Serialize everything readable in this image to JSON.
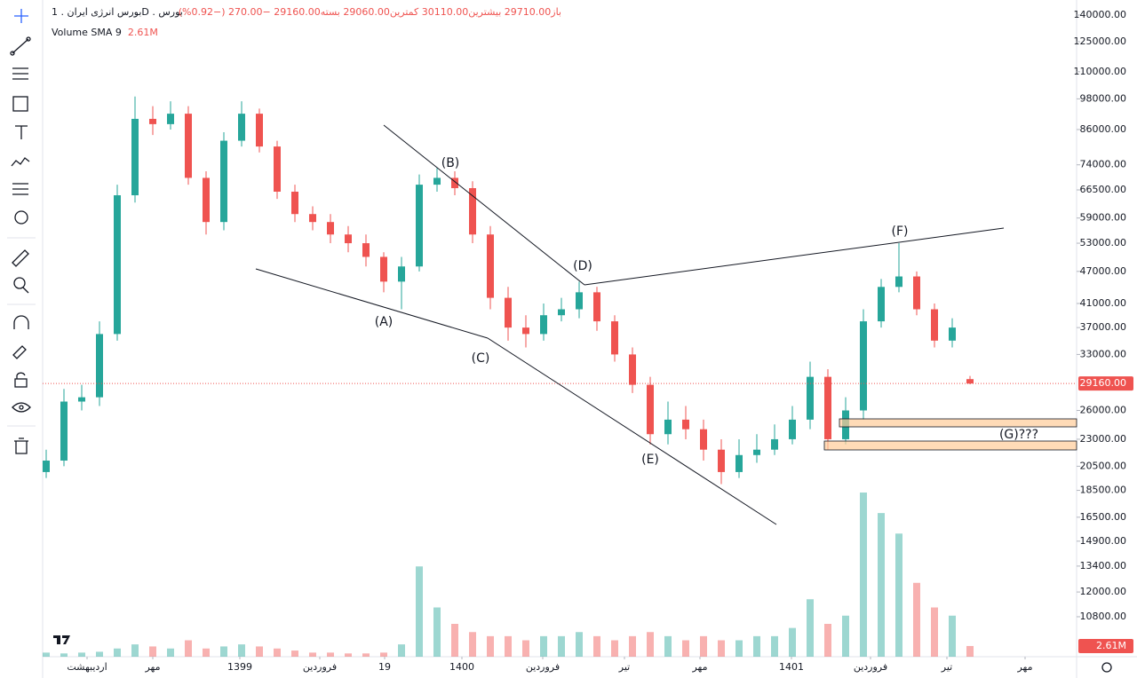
{
  "header": {
    "symbol": "بورس انرژی ایران . 1D . بورس",
    "quote": "باز29710.00 بیشترین30110.00 کمترین29060.00 بسته29160.00 −270.00 (−0.92%)",
    "volume_title": "Volume SMA 9",
    "volume_value": "2.61M"
  },
  "chart_data": {
    "type": "candlestick",
    "log_scale": true,
    "grid": false,
    "up_color": "#26a69a",
    "down_color": "#ef5350",
    "x": [
      0,
      1,
      2,
      3,
      4,
      5,
      6,
      7,
      8,
      9,
      10,
      11,
      12,
      13,
      14,
      15,
      16,
      17,
      18,
      19,
      20,
      21,
      22,
      23,
      24,
      25,
      26,
      27,
      28,
      29,
      30,
      31,
      32,
      33,
      34,
      35,
      36,
      37,
      38,
      39,
      40,
      41,
      42,
      43,
      44,
      45,
      46,
      47,
      48,
      49,
      50,
      51,
      52
    ],
    "open": [
      20000,
      21000,
      27000,
      27500,
      36000,
      65000,
      90000,
      88000,
      92000,
      70000,
      58000,
      82000,
      92000,
      80000,
      66000,
      60000,
      58000,
      55000,
      53000,
      50000,
      45000,
      48000,
      68000,
      70000,
      67000,
      55000,
      42000,
      37000,
      36000,
      39000,
      40000,
      43000,
      38000,
      33000,
      29000,
      23500,
      25000,
      24000,
      22000,
      20000,
      21500,
      22000,
      23000,
      25000,
      30000,
      23000,
      26000,
      38000,
      44000,
      46000,
      40000,
      35000,
      29710
    ],
    "high": [
      22000,
      28500,
      29000,
      38000,
      68000,
      99000,
      95000,
      97000,
      95000,
      72000,
      85000,
      97000,
      94000,
      82000,
      68000,
      62000,
      60000,
      57000,
      55000,
      51000,
      50000,
      71000,
      73000,
      72000,
      69000,
      57000,
      44000,
      39000,
      41000,
      42000,
      45000,
      44000,
      39000,
      34000,
      30000,
      27000,
      26500,
      25000,
      23000,
      23000,
      23500,
      24500,
      26500,
      32000,
      31000,
      27500,
      40000,
      45500,
      53000,
      47000,
      41000,
      38500,
      30110
    ],
    "low": [
      19500,
      20500,
      26000,
      26500,
      35000,
      63000,
      84000,
      86000,
      68000,
      55000,
      56000,
      80000,
      78000,
      64000,
      58000,
      56000,
      53000,
      51000,
      48000,
      43000,
      40000,
      47000,
      66000,
      65000,
      53000,
      40000,
      35000,
      34000,
      35000,
      38000,
      38500,
      36500,
      32000,
      28000,
      22500,
      22500,
      23000,
      21000,
      19000,
      19500,
      20800,
      21500,
      22500,
      24000,
      22000,
      22500,
      25000,
      37000,
      43000,
      39000,
      34000,
      34000,
      29060
    ],
    "close": [
      21000,
      27000,
      27500,
      36000,
      65000,
      90000,
      88000,
      92000,
      70000,
      58000,
      82000,
      92000,
      80000,
      66000,
      60000,
      58000,
      55000,
      53000,
      50000,
      45000,
      48000,
      68000,
      70000,
      67000,
      55000,
      42000,
      37000,
      36000,
      39000,
      40000,
      43000,
      38000,
      33000,
      29000,
      23500,
      25000,
      24000,
      22000,
      20000,
      21500,
      22000,
      23000,
      25000,
      30000,
      23000,
      26000,
      38000,
      44000,
      46000,
      40000,
      35000,
      37000,
      29160
    ],
    "volume": [
      1,
      0.8,
      1,
      1.2,
      2,
      3,
      2.5,
      2,
      4,
      2,
      2.5,
      3,
      2.5,
      2,
      1.5,
      1,
      1,
      0.8,
      0.8,
      1,
      3,
      22,
      12,
      8,
      6,
      5,
      5,
      4,
      5,
      5,
      6,
      5,
      4,
      5,
      6,
      5,
      4,
      5,
      4,
      4,
      5,
      5,
      7,
      14,
      8,
      10,
      40,
      35,
      30,
      18,
      12,
      10,
      2.61
    ],
    "volume_ylim": [
      0,
      160
    ],
    "xlim": [
      -0.2,
      58
    ],
    "xticks": [
      {
        "value": 2.3,
        "label": "اردیبهشت"
      },
      {
        "value": 6,
        "label": "مهر"
      },
      {
        "value": 10.9,
        "label": "1399"
      },
      {
        "value": 15.4,
        "label": "فروردین"
      },
      {
        "value": 19.05,
        "label": "19"
      },
      {
        "value": 23.4,
        "label": "1400"
      },
      {
        "value": 27.95,
        "label": "فروردین"
      },
      {
        "value": 32.55,
        "label": "تیر"
      },
      {
        "value": 36.8,
        "label": "مهر"
      },
      {
        "value": 41.95,
        "label": "1401"
      },
      {
        "value": 46.4,
        "label": "فروردین"
      },
      {
        "value": 50.7,
        "label": "تیر"
      },
      {
        "value": 55.1,
        "label": "مهر"
      }
    ],
    "ylim": [
      9110,
      149300
    ],
    "yticks": [
      {
        "value": 140000,
        "label": "140000.00"
      },
      {
        "value": 125000,
        "label": "125000.00"
      },
      {
        "value": 110000,
        "label": "110000.00"
      },
      {
        "value": 98000,
        "label": "98000.00"
      },
      {
        "value": 86000,
        "label": "86000.00"
      },
      {
        "value": 74000,
        "label": "74000.00"
      },
      {
        "value": 66500,
        "label": "66500.00"
      },
      {
        "value": 59000,
        "label": "59000.00"
      },
      {
        "value": 53000,
        "label": "53000.00"
      },
      {
        "value": 47000,
        "label": "47000.00"
      },
      {
        "value": 41000,
        "label": "41000.00"
      },
      {
        "value": 37000,
        "label": "37000.00"
      },
      {
        "value": 33000,
        "label": "33000.00"
      },
      {
        "value": 26000,
        "label": "26000.00"
      },
      {
        "value": 23000,
        "label": "23000.00"
      },
      {
        "value": 20500,
        "label": "20500.00"
      },
      {
        "value": 18500,
        "label": "18500.00"
      },
      {
        "value": 16500,
        "label": "16500.00"
      },
      {
        "value": 14900,
        "label": "14900.00"
      },
      {
        "value": 13400,
        "label": "13400.00"
      },
      {
        "value": 12000,
        "label": "12000.00"
      },
      {
        "value": 10800,
        "label": "10800.00"
      }
    ],
    "current_price": {
      "value": 29160,
      "label": "29160.00",
      "color": "#ef5350"
    },
    "annotations": [
      "(A)",
      "(B)",
      "(C)",
      "(D)",
      "(E)",
      "(F)",
      "(G)???"
    ]
  }
}
